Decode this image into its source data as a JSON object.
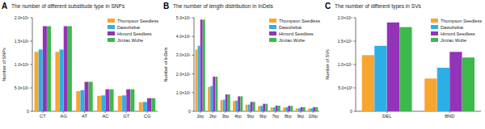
{
  "chart_data": [
    {
      "type": "bar",
      "label": "A",
      "title": "The number of different substitude type in SNPs",
      "y_label": "Number of SNPs",
      "categories": [
        "CT",
        "AG",
        "AT",
        "AC",
        "GT",
        "CG"
      ],
      "series": [
        {
          "name": "Thompson Seedless",
          "color": "#f7a531",
          "values": [
            1270000,
            1270000,
            430000,
            330000,
            330000,
            190000
          ]
        },
        {
          "name": "Dawuhebai",
          "color": "#2eaee6",
          "values": [
            1320000,
            1320000,
            450000,
            340000,
            340000,
            200000
          ]
        },
        {
          "name": "Himord Seedless",
          "color": "#9333b8",
          "values": [
            1820000,
            1820000,
            630000,
            470000,
            470000,
            280000
          ]
        },
        {
          "name": "Jinzao Wuhe",
          "color": "#3cb94a",
          "values": [
            1820000,
            1820000,
            630000,
            470000,
            470000,
            280000
          ]
        }
      ],
      "ylim": [
        0,
        2000000
      ],
      "yticks": [
        0,
        {
          "value": 500000,
          "label": "5.0×10⁵"
        },
        {
          "value": 1000000,
          "label": "1.0×10⁶"
        },
        {
          "value": 1500000,
          "label": "1.5×10⁶"
        },
        {
          "value": 2000000,
          "label": "2.0×10⁶"
        }
      ],
      "legend": "top-right",
      "grid": false
    },
    {
      "type": "bar",
      "label": "B",
      "title": "The number of length distribution in InDels",
      "y_label": "Number of InDels",
      "categories": [
        "1bp",
        "2bp",
        "3bp",
        "4bp",
        "5bp",
        "6bp",
        "7bp",
        "8bp",
        "9bp",
        "10bp"
      ],
      "series": [
        {
          "name": "Thompson Seedless",
          "color": "#f7a531",
          "values": [
            330000,
            130000,
            60000,
            55000,
            35000,
            28000,
            20000,
            20000,
            15000,
            15000
          ]
        },
        {
          "name": "Dawuhebai",
          "color": "#2eaee6",
          "values": [
            350000,
            135000,
            62000,
            57000,
            36000,
            29000,
            21000,
            21000,
            16000,
            16000
          ]
        },
        {
          "name": "Himord Seedless",
          "color": "#9333b8",
          "values": [
            490000,
            185000,
            90000,
            80000,
            50000,
            40000,
            30000,
            29000,
            22000,
            22000
          ]
        },
        {
          "name": "Jinzao Wuhe",
          "color": "#3cb94a",
          "values": [
            490000,
            185000,
            90000,
            80000,
            50000,
            40000,
            30000,
            29000,
            22000,
            22000
          ]
        }
      ],
      "ylim": [
        0,
        500000
      ],
      "yticks": [
        0,
        {
          "value": 100000,
          "label": "1.0×10⁵"
        },
        {
          "value": 200000,
          "label": "2.0×10⁵"
        },
        {
          "value": 300000,
          "label": "3.0×10⁵"
        },
        {
          "value": 400000,
          "label": "4.0×10⁵"
        },
        {
          "value": 500000,
          "label": "5.0×10⁵"
        }
      ],
      "legend": "top-right",
      "grid": false
    },
    {
      "type": "bar",
      "label": "C",
      "title": "The number of different types in SVs",
      "y_label": "Number of SVs",
      "categories": [
        "DEL",
        "BND"
      ],
      "series": [
        {
          "name": "Thompson Seedless",
          "color": "#f7a531",
          "values": [
            12000,
            7000
          ]
        },
        {
          "name": "Dawuhebai",
          "color": "#2eaee6",
          "values": [
            14000,
            9300
          ]
        },
        {
          "name": "Himord Seedless",
          "color": "#9333b8",
          "values": [
            19000,
            12700
          ]
        },
        {
          "name": "Jinzao Wuhe",
          "color": "#3cb94a",
          "values": [
            18000,
            11500
          ]
        }
      ],
      "ylim": [
        0,
        20000
      ],
      "yticks": [
        0,
        {
          "value": 5000,
          "label": "5.0×10³"
        },
        {
          "value": 10000,
          "label": "1.0×10⁴"
        },
        {
          "value": 15000,
          "label": "1.5×10⁴"
        },
        {
          "value": 20000,
          "label": "2.0×10⁴"
        }
      ],
      "legend": "top-right",
      "grid": false
    }
  ]
}
